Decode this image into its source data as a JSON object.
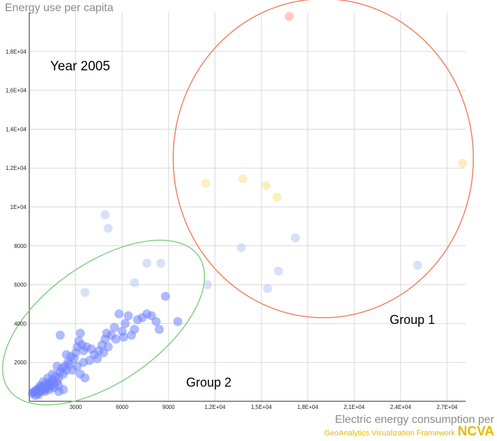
{
  "chart_data": {
    "type": "scatter",
    "title": "Energy use per capita",
    "xlabel": "Electric energy consumption per",
    "ylabel": "Energy use per capita",
    "annotation": "Year 2005",
    "xlim": [
      0,
      28200
    ],
    "ylim": [
      0,
      20000
    ],
    "xticks": [
      3000,
      6000,
      9000,
      12000,
      15000,
      18000,
      21000,
      24000,
      27000
    ],
    "xtick_labels": [
      "3000",
      "6000",
      "9000",
      "1,2E+04",
      "1,5E+04",
      "1,8E+04",
      "2,1E+04",
      "2,4E+04",
      "2,7E+04"
    ],
    "yticks": [
      2000,
      4000,
      6000,
      8000,
      10000,
      12000,
      14000,
      16000,
      18000
    ],
    "ytick_labels": [
      "2000",
      "4000",
      "6000",
      "8000",
      "1E+04",
      "1,2E+04",
      "1,4E+04",
      "1,6E+04",
      "1,8E+04"
    ],
    "grid": true,
    "groups": [
      {
        "name": "Group 1",
        "color": "#f08060",
        "cx": 19000,
        "cy": 12500,
        "rx": 9700,
        "ry": 8200,
        "angle": 0
      },
      {
        "name": "Group 2",
        "color": "#7fd07f",
        "cx": 4800,
        "cy": 4050,
        "rx": 7500,
        "ry": 3050,
        "angle": -35
      }
    ],
    "colors": {
      "blue": "#6f82ff",
      "light_blue": "#b8c9f2",
      "yellow": "#fce08a",
      "salmon": "#f7a38a",
      "ellipse1": "#f08060",
      "ellipse2": "#7fd07f"
    },
    "series": [
      {
        "color": "#b8c9f2",
        "points": [
          [
            4900,
            9600
          ],
          [
            5100,
            8900
          ],
          [
            13700,
            7900
          ],
          [
            17200,
            8400
          ],
          [
            16100,
            6700
          ],
          [
            15400,
            5800
          ],
          [
            25100,
            7000
          ],
          [
            11500,
            6000
          ],
          [
            3600,
            5600
          ],
          [
            7600,
            7100
          ],
          [
            8500,
            7100
          ],
          [
            6800,
            6100
          ]
        ]
      },
      {
        "color": "#fce08a",
        "points": [
          [
            11400,
            11200
          ],
          [
            13800,
            11450
          ],
          [
            15300,
            11100
          ],
          [
            16000,
            10500
          ],
          [
            28000,
            12250
          ]
        ]
      },
      {
        "color": "#f7a38a",
        "points": [
          [
            16800,
            19800
          ]
        ]
      },
      {
        "color": "#6f82ff",
        "points": [
          [
            200,
            400
          ],
          [
            300,
            500
          ],
          [
            400,
            300
          ],
          [
            500,
            600
          ],
          [
            600,
            450
          ],
          [
            700,
            700
          ],
          [
            800,
            550
          ],
          [
            900,
            800
          ],
          [
            1000,
            600
          ],
          [
            1100,
            900
          ],
          [
            1200,
            700
          ],
          [
            1300,
            1000
          ],
          [
            1400,
            800
          ],
          [
            1500,
            1100
          ],
          [
            1600,
            900
          ],
          [
            1700,
            1300
          ],
          [
            1800,
            1000
          ],
          [
            1900,
            1200
          ],
          [
            2000,
            1500
          ],
          [
            2100,
            1700
          ],
          [
            2200,
            1400
          ],
          [
            2300,
            1800
          ],
          [
            2400,
            1600
          ],
          [
            2500,
            2000
          ],
          [
            2700,
            2300
          ],
          [
            2900,
            2200
          ],
          [
            3000,
            2500
          ],
          [
            3100,
            2800
          ],
          [
            3200,
            3100
          ],
          [
            3300,
            3500
          ],
          [
            3400,
            2900
          ],
          [
            3500,
            2600
          ],
          [
            3700,
            2800
          ],
          [
            4000,
            2700
          ],
          [
            4200,
            2400
          ],
          [
            4500,
            2600
          ],
          [
            4700,
            2900
          ],
          [
            4900,
            3200
          ],
          [
            5000,
            3500
          ],
          [
            5300,
            3400
          ],
          [
            5500,
            3800
          ],
          [
            5800,
            4500
          ],
          [
            6000,
            3600
          ],
          [
            6200,
            4000
          ],
          [
            6400,
            4400
          ],
          [
            6800,
            3700
          ],
          [
            7000,
            4200
          ],
          [
            7300,
            4300
          ],
          [
            7600,
            4500
          ],
          [
            7900,
            4400
          ],
          [
            8200,
            4100
          ],
          [
            8400,
            3700
          ],
          [
            8800,
            5400
          ],
          [
            9600,
            4100
          ],
          [
            6600,
            3400
          ],
          [
            6100,
            3300
          ],
          [
            5600,
            3200
          ],
          [
            5100,
            2800
          ],
          [
            4800,
            2500
          ],
          [
            4400,
            2200
          ],
          [
            2000,
            3400
          ],
          [
            1800,
            1800
          ],
          [
            1500,
            1400
          ],
          [
            1200,
            1200
          ],
          [
            900,
            1000
          ],
          [
            700,
            800
          ],
          [
            500,
            600
          ],
          [
            400,
            500
          ],
          [
            300,
            450
          ],
          [
            600,
            350
          ],
          [
            800,
            700
          ],
          [
            1000,
            500
          ],
          [
            1300,
            600
          ],
          [
            1600,
            700
          ],
          [
            1900,
            500
          ],
          [
            2200,
            600
          ],
          [
            2600,
            1900
          ],
          [
            2800,
            1600
          ],
          [
            3100,
            1800
          ],
          [
            3300,
            1400
          ],
          [
            3500,
            2000
          ],
          [
            3600,
            1200
          ],
          [
            3900,
            2100
          ],
          [
            2400,
            2400
          ],
          [
            1900,
            800
          ],
          [
            1400,
            950
          ],
          [
            1100,
            750
          ],
          [
            850,
            650
          ],
          [
            650,
            500
          ]
        ]
      }
    ]
  },
  "footer": {
    "framework": "GeoAnalytics Visualization Framework",
    "logo": "NCVA"
  }
}
